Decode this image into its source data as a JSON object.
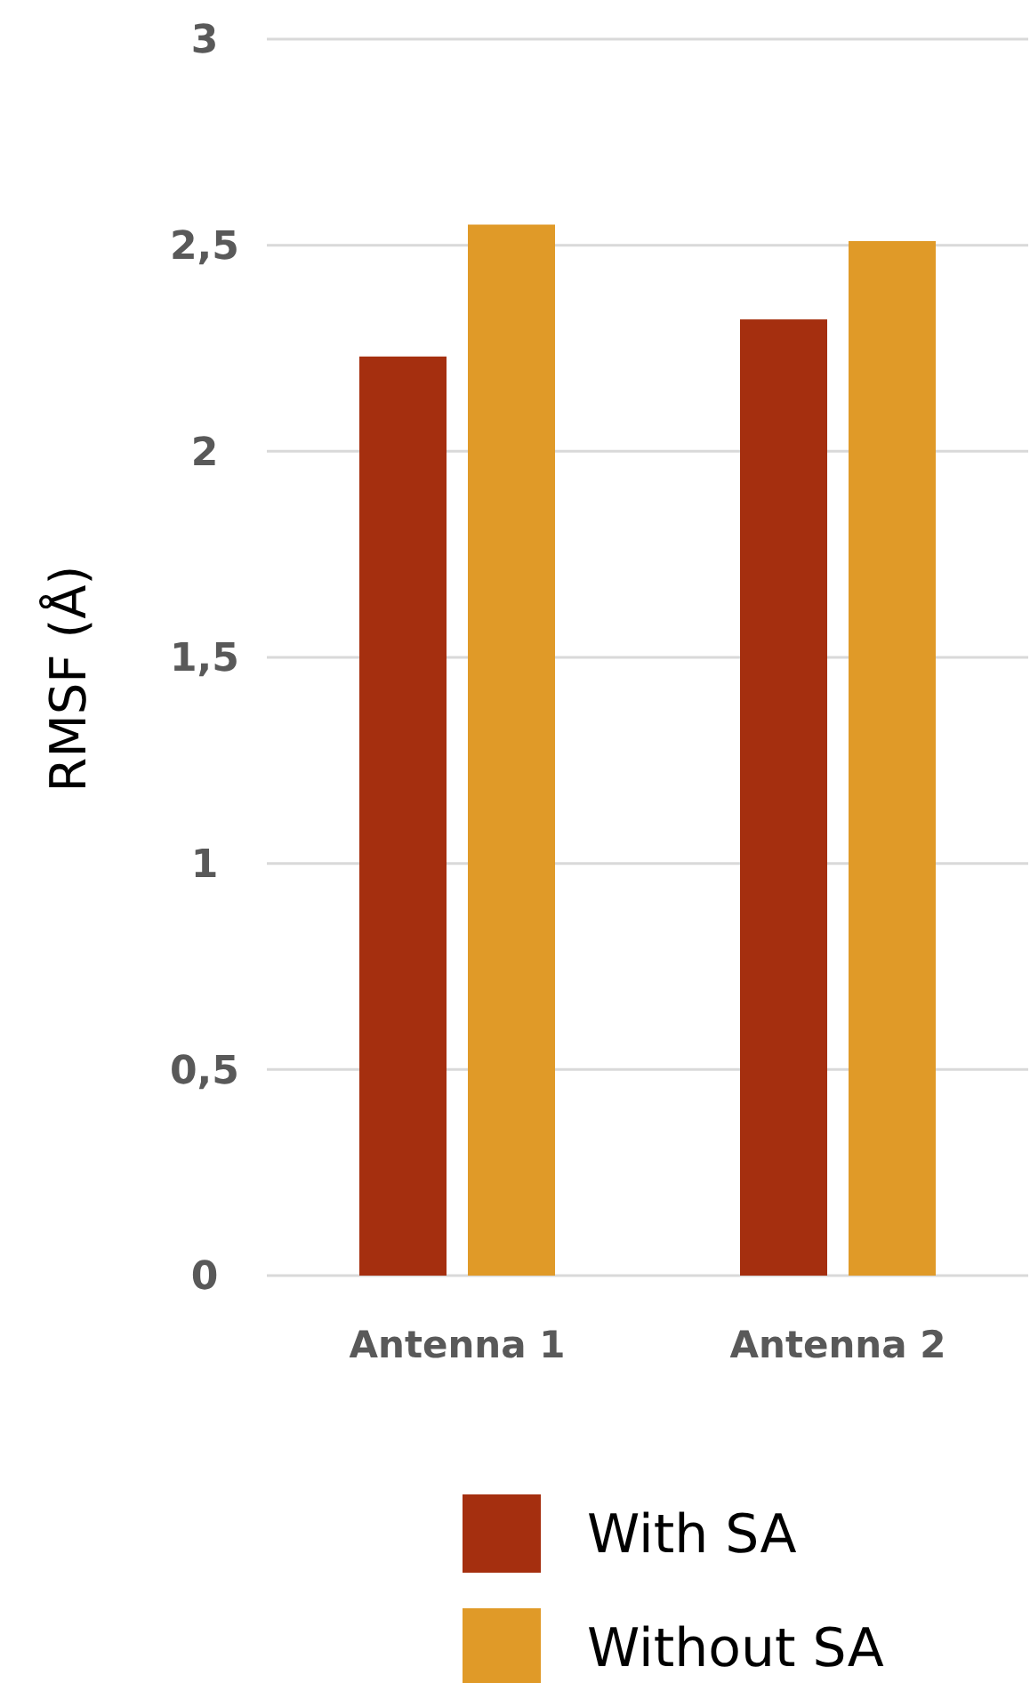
{
  "chart_data": {
    "type": "bar",
    "ylabel": "RMSF (Å)",
    "categories": [
      "Antenna 1",
      "Antenna 2"
    ],
    "series": [
      {
        "name": "With SA",
        "color": "#a52f0f",
        "values": [
          2.23,
          2.32
        ]
      },
      {
        "name": "Without SA",
        "color": "#e09a28",
        "values": [
          2.55,
          2.51
        ]
      }
    ],
    "ylim": [
      0,
      3
    ],
    "yticks": [
      0,
      {
        "value": 0.5,
        "label": "0,5"
      },
      1,
      {
        "value": 1.5,
        "label": "1,5"
      },
      2,
      {
        "value": 2.5,
        "label": "2,5"
      },
      3
    ],
    "grid": "y",
    "legend": "bottom"
  }
}
